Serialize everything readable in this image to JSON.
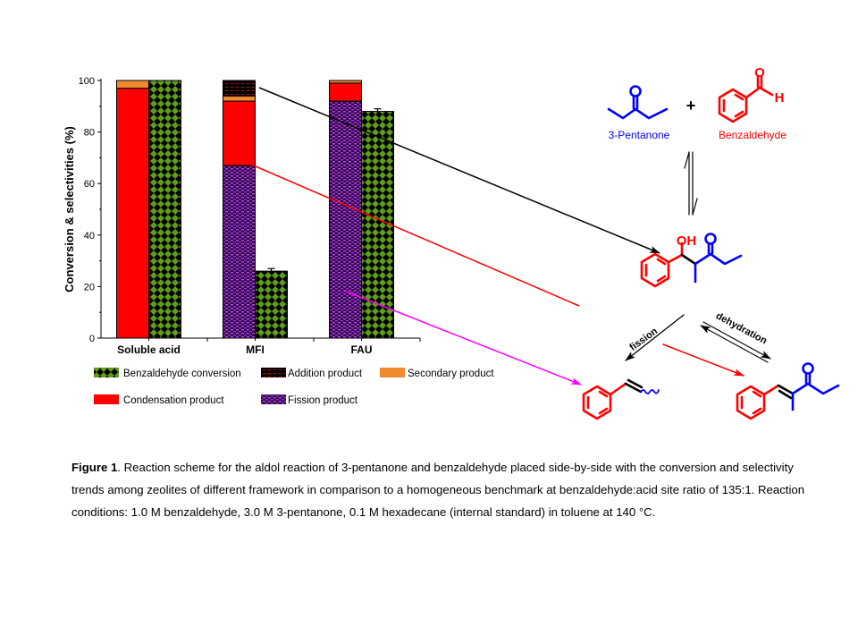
{
  "chart_data": {
    "type": "bar",
    "stacked_and_grouped": true,
    "categories": [
      "Soluble acid",
      "MFI",
      "FAU"
    ],
    "ylabel": "Conversion & selectivities (%)",
    "xlabel": "",
    "ylim": [
      0,
      100
    ],
    "yticks": [
      0,
      20,
      40,
      60,
      80,
      100
    ],
    "grid": false,
    "legend_position": "bottom",
    "selectivity_stack": [
      {
        "name": "Fission product",
        "color": "#9b30d9",
        "values": [
          0,
          67,
          92
        ]
      },
      {
        "name": "Condensation product",
        "color": "#ff0000",
        "values": [
          97,
          25,
          7
        ]
      },
      {
        "name": "Secondary product",
        "color": "#f08a30",
        "values": [
          3,
          2,
          1
        ]
      },
      {
        "name": "Addition product",
        "color": "#000000",
        "values": [
          0,
          6,
          0
        ]
      }
    ],
    "conversion": {
      "name": "Benzaldehyde conversion",
      "color": "#5e9e1a",
      "values": [
        100,
        26,
        88
      ],
      "error": [
        0,
        1,
        1
      ]
    }
  },
  "scheme": {
    "reactant1": "3-Pentanone",
    "reactant2": "Benzaldehyde",
    "plus": "+",
    "oh_label": "OH",
    "o_label": "O",
    "h_label": "H",
    "fission_label": "fission",
    "dehydration_label": "dehydration",
    "colors": {
      "ketone": "#0000ff",
      "aldehyde": "#ff0000",
      "arrow": "#000000",
      "fission_arrow": "#ff00ff"
    }
  },
  "caption": {
    "label": "Figure 1",
    "text": ". Reaction scheme for the aldol reaction of 3-pentanone and benzaldehyde placed side-by-side with the conversion and selectivity trends among zeolites of different framework in comparison to a homogeneous benchmark at benzaldehyde:acid site ratio of 135:1. Reaction conditions: 1.0 M benzaldehyde, 3.0 M 3-pentanone, 0.1 M hexadecane (internal standard) in toluene at 140 °C."
  }
}
